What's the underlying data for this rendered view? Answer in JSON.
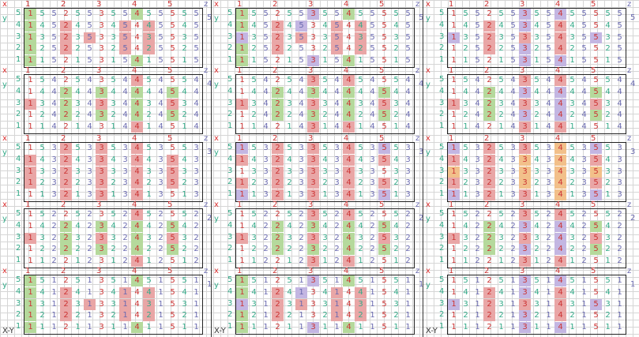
{
  "labels": {
    "x": "x",
    "y": "y",
    "z": "z",
    "xy": "X-Y",
    "x_ticks": [
      "1",
      "2",
      "3",
      "4",
      "5"
    ],
    "y_ticks": [
      "5",
      "4",
      "3",
      "2",
      "1"
    ],
    "z_ticks": [
      "5",
      "4",
      "3",
      "2",
      "1"
    ]
  },
  "colors": {
    "G": "#b5d99c",
    "R": "#e9a6a6",
    "P": "#c3b6e2",
    "O": "#f2c08a",
    "N": "transparent"
  },
  "blocks": [
    {
      "z": "5",
      "rows": [
        {
          "y": "5",
          "cells": [
            "1",
            "5",
            "5",
            "2",
            "5",
            "5",
            "3",
            "5",
            "5",
            "4",
            "5",
            "5",
            "5",
            "5",
            "5"
          ]
        },
        {
          "y": "4",
          "cells": [
            "1",
            "4",
            "5",
            "2",
            "4",
            "5",
            "3",
            "4",
            "5",
            "4",
            "4",
            "5",
            "5",
            "4",
            "5"
          ]
        },
        {
          "y": "3",
          "cells": [
            "1",
            "3",
            "5",
            "2",
            "3",
            "5",
            "3",
            "3",
            "5",
            "4",
            "3",
            "5",
            "5",
            "3",
            "5"
          ]
        },
        {
          "y": "2",
          "cells": [
            "1",
            "2",
            "5",
            "2",
            "2",
            "5",
            "3",
            "2",
            "5",
            "4",
            "2",
            "5",
            "5",
            "2",
            "5"
          ]
        },
        {
          "y": "1",
          "cells": [
            "1",
            "1",
            "5",
            "2",
            "1",
            "5",
            "3",
            "1",
            "5",
            "4",
            "1",
            "5",
            "5",
            "1",
            "5"
          ]
        }
      ]
    },
    {
      "z": "4",
      "rows": [
        {
          "y": "5",
          "cells": [
            "1",
            "5",
            "4",
            "2",
            "5",
            "4",
            "3",
            "5",
            "4",
            "4",
            "5",
            "4",
            "5",
            "5",
            "4"
          ]
        },
        {
          "y": "4",
          "cells": [
            "1",
            "4",
            "4",
            "2",
            "4",
            "4",
            "3",
            "4",
            "4",
            "4",
            "4",
            "4",
            "5",
            "4",
            "4"
          ]
        },
        {
          "y": "3",
          "cells": [
            "1",
            "3",
            "4",
            "2",
            "3",
            "4",
            "3",
            "3",
            "4",
            "4",
            "3",
            "4",
            "5",
            "3",
            "4"
          ]
        },
        {
          "y": "2",
          "cells": [
            "1",
            "2",
            "4",
            "2",
            "2",
            "4",
            "3",
            "2",
            "4",
            "4",
            "2",
            "4",
            "5",
            "2",
            "4"
          ]
        },
        {
          "y": "1",
          "cells": [
            "1",
            "1",
            "4",
            "2",
            "1",
            "4",
            "3",
            "1",
            "4",
            "4",
            "1",
            "4",
            "5",
            "1",
            "4"
          ]
        }
      ]
    },
    {
      "z": "3",
      "rows": [
        {
          "y": "5",
          "cells": [
            "1",
            "5",
            "3",
            "2",
            "5",
            "3",
            "3",
            "5",
            "3",
            "4",
            "5",
            "3",
            "5",
            "5",
            "3"
          ]
        },
        {
          "y": "4",
          "cells": [
            "1",
            "4",
            "3",
            "2",
            "4",
            "3",
            "3",
            "4",
            "3",
            "4",
            "4",
            "3",
            "5",
            "4",
            "3"
          ]
        },
        {
          "y": "3",
          "cells": [
            "1",
            "3",
            "3",
            "2",
            "3",
            "3",
            "3",
            "3",
            "3",
            "4",
            "3",
            "3",
            "5",
            "3",
            "3"
          ]
        },
        {
          "y": "2",
          "cells": [
            "1",
            "2",
            "3",
            "2",
            "2",
            "3",
            "3",
            "2",
            "3",
            "4",
            "2",
            "3",
            "5",
            "2",
            "3"
          ]
        },
        {
          "y": "1",
          "cells": [
            "1",
            "1",
            "3",
            "2",
            "1",
            "3",
            "3",
            "1",
            "3",
            "4",
            "1",
            "3",
            "5",
            "1",
            "3"
          ]
        }
      ]
    },
    {
      "z": "2",
      "rows": [
        {
          "y": "5",
          "cells": [
            "1",
            "5",
            "2",
            "2",
            "5",
            "2",
            "3",
            "5",
            "2",
            "4",
            "5",
            "2",
            "5",
            "5",
            "2"
          ]
        },
        {
          "y": "4",
          "cells": [
            "1",
            "4",
            "2",
            "2",
            "4",
            "2",
            "3",
            "4",
            "2",
            "4",
            "4",
            "2",
            "5",
            "4",
            "2"
          ]
        },
        {
          "y": "3",
          "cells": [
            "1",
            "3",
            "2",
            "2",
            "3",
            "2",
            "3",
            "3",
            "2",
            "4",
            "3",
            "2",
            "5",
            "3",
            "2"
          ]
        },
        {
          "y": "2",
          "cells": [
            "1",
            "2",
            "2",
            "2",
            "2",
            "2",
            "3",
            "2",
            "2",
            "4",
            "2",
            "2",
            "5",
            "2",
            "2"
          ]
        },
        {
          "y": "1",
          "cells": [
            "1",
            "1",
            "2",
            "2",
            "1",
            "2",
            "3",
            "1",
            "2",
            "4",
            "1",
            "2",
            "5",
            "1",
            "2"
          ]
        }
      ]
    },
    {
      "z": "1",
      "rows": [
        {
          "y": "5",
          "cells": [
            "1",
            "5",
            "1",
            "2",
            "5",
            "1",
            "3",
            "5",
            "1",
            "4",
            "5",
            "1",
            "5",
            "5",
            "1"
          ]
        },
        {
          "y": "4",
          "cells": [
            "1",
            "4",
            "1",
            "2",
            "4",
            "1",
            "3",
            "4",
            "1",
            "4",
            "4",
            "1",
            "5",
            "4",
            "1"
          ]
        },
        {
          "y": "3",
          "cells": [
            "1",
            "3",
            "1",
            "2",
            "3",
            "1",
            "3",
            "3",
            "1",
            "4",
            "3",
            "1",
            "5",
            "3",
            "1"
          ]
        },
        {
          "y": "2",
          "cells": [
            "1",
            "2",
            "1",
            "2",
            "2",
            "1",
            "3",
            "2",
            "1",
            "4",
            "2",
            "1",
            "5",
            "2",
            "1"
          ]
        },
        {
          "y": "1",
          "cells": [
            "1",
            "1",
            "1",
            "2",
            "1",
            "1",
            "3",
            "1",
            "1",
            "4",
            "1",
            "1",
            "5",
            "1",
            "1"
          ]
        }
      ]
    }
  ],
  "panels": [
    {
      "fills": [
        [
          "G........G.....",
          "G..R....R.R....",
          "G..R.R..R.R....",
          "G..R....R.R....",
          "G........G....."
        ],
        [
          ".........R.....",
          "...G..G..G..G..",
          "R..G..R..G..R..",
          "...G..G..G..G..",
          ".........R....."
        ],
        [
          "...R..R..R.....",
          "R..R..R..R..R..",
          "R..R..R..R..R..",
          "R..R..R..R..R..",
          "...R..R..R....."
        ],
        [
          ".........R.....",
          "...G..G..G..G..",
          "R..G..R..G..R..",
          "...G..G..G..G..",
          ".........R....."
        ],
        [
          "G........G.....",
          "G..R....R.R....",
          "G..R.R..R.R....",
          "G..R....R.R....",
          "G........G....."
        ]
      ]
    },
    {
      "fills": [
        [
          "G.....P..G.....",
          "G..R.P..R.R....",
          "P..R.R..R.R....",
          "G..R....R.R....",
          "G.....P..G....."
        ],
        [
          "......R..R.....",
          "...G..G..G..G..",
          "R..G..R..G..R..",
          "...G..G..G..G..",
          "......R..R....."
        ],
        [
          "P..R..R..R..P..",
          "R..R..R..R..R..",
          "...R..R..R.....",
          "R..R..R..R..R..",
          "P..R..R..R..P.."
        ],
        [
          "......R..R.....",
          "...G..G..G..G..",
          "R..G..R..G..R..",
          "...G..G..G..G..",
          "......R..R....."
        ],
        [
          "G.....P..G.....",
          "G..R.P..R.R....",
          "P..R.R..R.R....",
          "G..R....R.R....",
          "G.....P..G....."
        ]
      ]
    },
    {
      "fills": [
        [
          "......P..P.....",
          "...R..P..R.....",
          "P..R..R..R..P..",
          "...R..P..R.....",
          "......P..P....."
        ],
        [
          "......R..R.....",
          "...G..P..P..G..",
          "R..G..R..P..R..",
          "...G..P..P..G..",
          "......R..R....."
        ],
        [
          "P..R..R..O..P..",
          "R..R..O..O..R..",
          "O..R..O..O..O..",
          "R..R..O..O..R..",
          "P..R..R..O..P.."
        ],
        [
          "......R..R.....",
          "...G..P..P..G..",
          "R..G..R..P..R..",
          "...G..P..P..G..",
          "......R..R....."
        ],
        [
          "......P..P.....",
          "...R..P..R.....",
          "P..R..R..R..P..",
          "...R..P..R.....",
          "......P..P....."
        ]
      ]
    }
  ]
}
